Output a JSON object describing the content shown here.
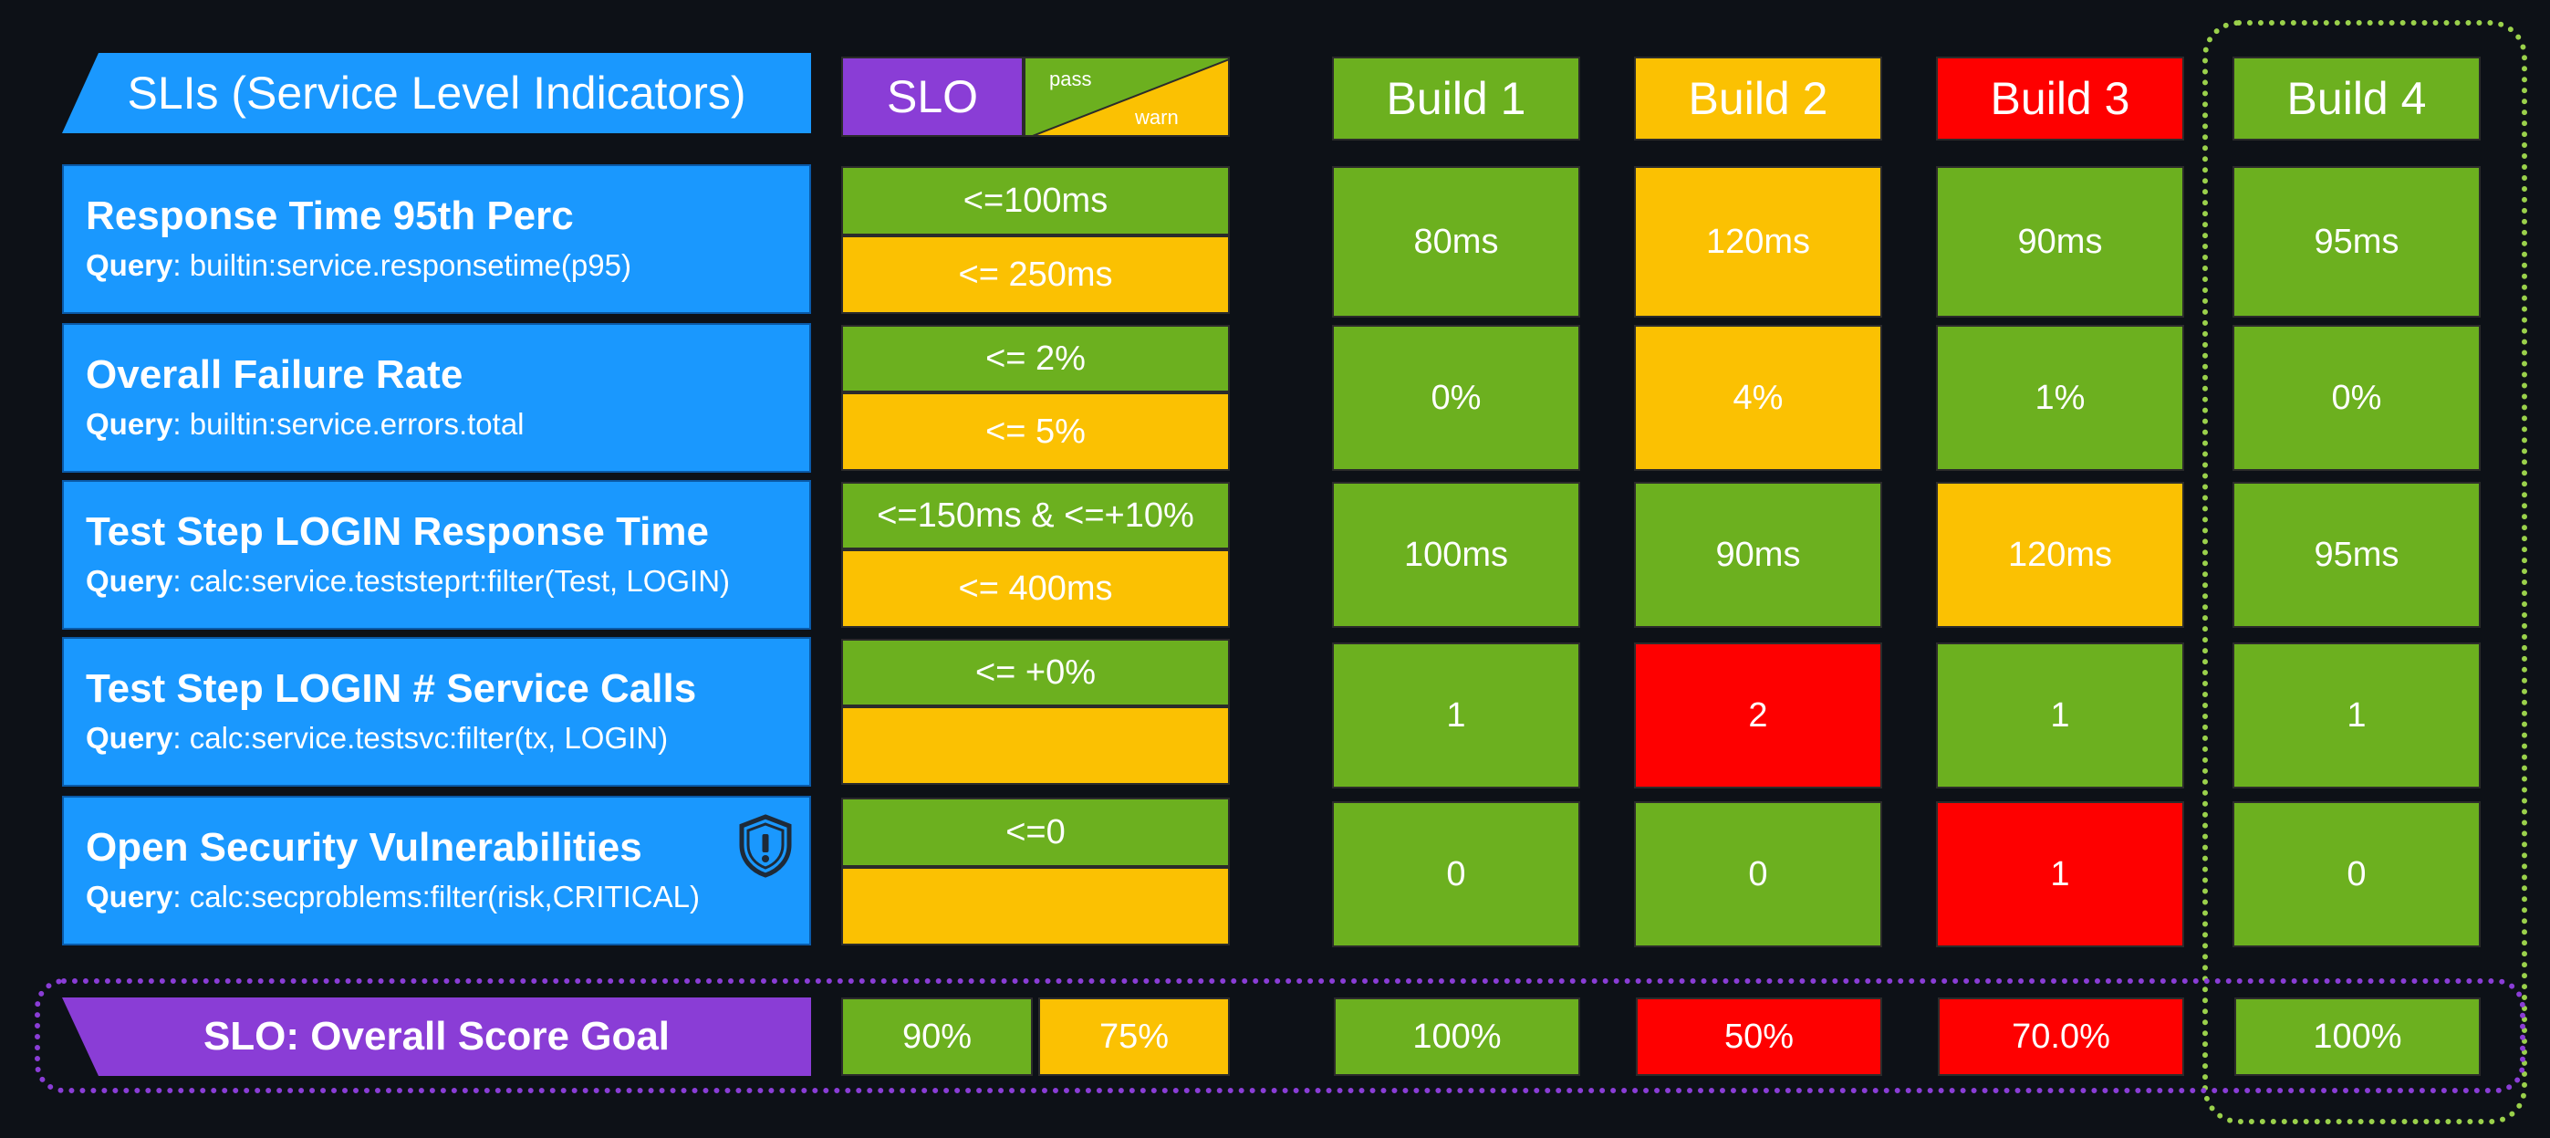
{
  "header": {
    "sli_title": "SLIs (Service Level Indicators)",
    "slo_label": "SLO",
    "pass_label": "pass",
    "warn_label": "warn",
    "builds": [
      {
        "label": "Build 1",
        "status": "green"
      },
      {
        "label": "Build 2",
        "status": "orange"
      },
      {
        "label": "Build 3",
        "status": "red"
      },
      {
        "label": "Build 4",
        "status": "green"
      }
    ]
  },
  "rows": [
    {
      "title": "Response Time 95th Perc",
      "query_label": "Query",
      "query": ": builtin:service.responsetime(p95)",
      "pass": "<=100ms",
      "warn": "<= 250ms",
      "results": [
        {
          "value": "80ms",
          "status": "green"
        },
        {
          "value": "120ms",
          "status": "orange"
        },
        {
          "value": "90ms",
          "status": "green"
        },
        {
          "value": "95ms",
          "status": "green"
        }
      ]
    },
    {
      "title": "Overall Failure Rate",
      "query_label": "Query",
      "query": ": builtin:service.errors.total",
      "pass": "<= 2%",
      "warn": "<= 5%",
      "results": [
        {
          "value": "0%",
          "status": "green"
        },
        {
          "value": "4%",
          "status": "orange"
        },
        {
          "value": "1%",
          "status": "green"
        },
        {
          "value": "0%",
          "status": "green"
        }
      ]
    },
    {
      "title": "Test Step LOGIN Response Time",
      "query_label": "Query",
      "query": ": calc:service.teststeprt:filter(Test, LOGIN)",
      "pass": "<=150ms & <=+10%",
      "warn": "<= 400ms",
      "results": [
        {
          "value": "100ms",
          "status": "green"
        },
        {
          "value": "90ms",
          "status": "green"
        },
        {
          "value": "120ms",
          "status": "orange"
        },
        {
          "value": "95ms",
          "status": "green"
        }
      ]
    },
    {
      "title": "Test Step LOGIN # Service Calls",
      "query_label": "Query",
      "query": ": calc:service.testsvc:filter(tx, LOGIN)",
      "pass": "<= +0%",
      "warn": "",
      "results": [
        {
          "value": "1",
          "status": "green"
        },
        {
          "value": "2",
          "status": "red"
        },
        {
          "value": "1",
          "status": "green"
        },
        {
          "value": "1",
          "status": "green"
        }
      ]
    },
    {
      "title": "Open Security Vulnerabilities",
      "query_label": "Query",
      "query": ": calc:secproblems:filter(risk,CRITICAL)",
      "pass": "<=0",
      "warn": "",
      "icon": "shield-alert-icon",
      "results": [
        {
          "value": "0",
          "status": "green"
        },
        {
          "value": "0",
          "status": "green"
        },
        {
          "value": "1",
          "status": "red"
        },
        {
          "value": "0",
          "status": "green"
        }
      ]
    }
  ],
  "score": {
    "title": "SLO: Overall Score Goal",
    "pass": "90%",
    "warn": "75%",
    "results": [
      {
        "value": "100%",
        "status": "green"
      },
      {
        "value": "50%",
        "status": "red"
      },
      {
        "value": "70.0%",
        "status": "red"
      },
      {
        "value": "100%",
        "status": "green"
      }
    ]
  },
  "colors": {
    "green": "#6cb01f",
    "orange": "#fbc102",
    "red": "#fe0000",
    "blue": "#1a98fe",
    "purple": "#8a3dd6",
    "highlight_green": "#9ad14b",
    "highlight_purple": "#8a3dd6"
  }
}
